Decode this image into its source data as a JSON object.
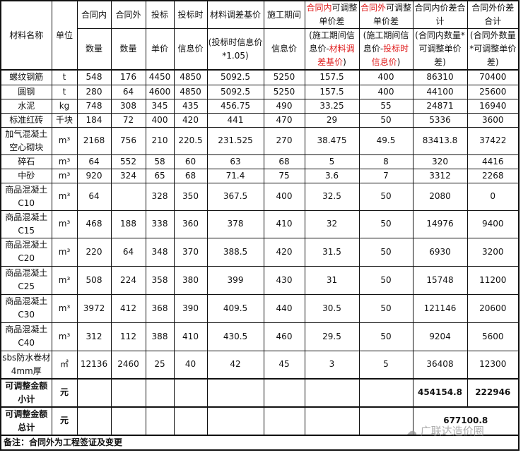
{
  "header": {
    "material": "材料名称",
    "unit": "单位",
    "cols": [
      {
        "top": "合同内",
        "bottom": "数量"
      },
      {
        "top": "合同外",
        "bottom": "数量"
      },
      {
        "top": "投标",
        "bottom": "单价"
      },
      {
        "top": "投标时",
        "bottom": "信息价"
      },
      {
        "top": "材料调差基价",
        "bottom": "(投标时信息价*1.05)"
      },
      {
        "top": "施工期间",
        "bottom": "信息价"
      }
    ],
    "in_diff": {
      "red": "合同内",
      "black": "可调整单价差",
      "sub_black": "(施工期间信息价-",
      "sub_red": "材料调差基价",
      "sub_end": ")"
    },
    "out_diff": {
      "red": "合同外",
      "black": "可调整单价差",
      "sub_black": "(施工期间信息价-",
      "sub_red": "投标时信息价",
      "sub_end": ")"
    },
    "in_total": {
      "top": "合同内价差合计",
      "bottom": "(合同内数量*可调整单价差)"
    },
    "out_total": {
      "top": "合同外价差合计",
      "bottom": "(合同外数量*可调整单价差)"
    }
  },
  "rows": [
    [
      "螺纹钢筋",
      "t",
      "548",
      "176",
      "4450",
      "4850",
      "5092.5",
      "5250",
      "157.5",
      "400",
      "86310",
      "70400"
    ],
    [
      "圆钢",
      "t",
      "280",
      "64",
      "4600",
      "4850",
      "5092.5",
      "5250",
      "157.5",
      "400",
      "44100",
      "25600"
    ],
    [
      "水泥",
      "kg",
      "748",
      "308",
      "345",
      "435",
      "456.75",
      "490",
      "33.25",
      "55",
      "24871",
      "16940"
    ],
    [
      "标准红砖",
      "千块",
      "184",
      "72",
      "400",
      "420",
      "441",
      "470",
      "29",
      "50",
      "5336",
      "3600"
    ],
    [
      "加气混凝土空心砌块",
      "m³",
      "2168",
      "756",
      "210",
      "220.5",
      "231.525",
      "270",
      "38.475",
      "49.5",
      "83413.8",
      "37422"
    ],
    [
      "碎石",
      "m³",
      "64",
      "552",
      "58",
      "60",
      "63",
      "68",
      "5",
      "8",
      "320",
      "4416"
    ],
    [
      "中砂",
      "m³",
      "920",
      "324",
      "65",
      "68",
      "71.4",
      "75",
      "3.6",
      "7",
      "3312",
      "2268"
    ],
    [
      "商品混凝土C10",
      "m³",
      "64",
      "",
      "328",
      "350",
      "367.5",
      "400",
      "32.5",
      "50",
      "2080",
      "0"
    ],
    [
      "商品混凝土C15",
      "m³",
      "468",
      "188",
      "338",
      "360",
      "378",
      "410",
      "32",
      "50",
      "14976",
      "9400"
    ],
    [
      "商品混凝土C20",
      "m³",
      "220",
      "64",
      "348",
      "370",
      "388.5",
      "420",
      "31.5",
      "50",
      "6930",
      "3200"
    ],
    [
      "商品混凝土C25",
      "m³",
      "508",
      "224",
      "358",
      "380",
      "399",
      "430",
      "31",
      "50",
      "15748",
      "11200"
    ],
    [
      "商品混凝土C30",
      "m³",
      "3972",
      "412",
      "368",
      "390",
      "409.5",
      "440",
      "30.5",
      "50",
      "121146",
      "20600"
    ],
    [
      "商品混凝土C40",
      "m³",
      "312",
      "112",
      "388",
      "410",
      "430.5",
      "460",
      "29.5",
      "50",
      "9204",
      "5600"
    ],
    [
      "sbs防水卷材4mm厚",
      "㎡",
      "12136",
      "2460",
      "25",
      "40",
      "42",
      "45",
      "3",
      "5",
      "36408",
      "12300"
    ]
  ],
  "subtotal": {
    "label": "可调整金额小计",
    "unit": "元",
    "in": "454154.8",
    "out": "222946"
  },
  "total": {
    "label": "可调整金额总计",
    "unit": "元",
    "value": "677100.8"
  },
  "note": "备注：合同外为工程签证及变更",
  "watermark": "广联达造价圈"
}
